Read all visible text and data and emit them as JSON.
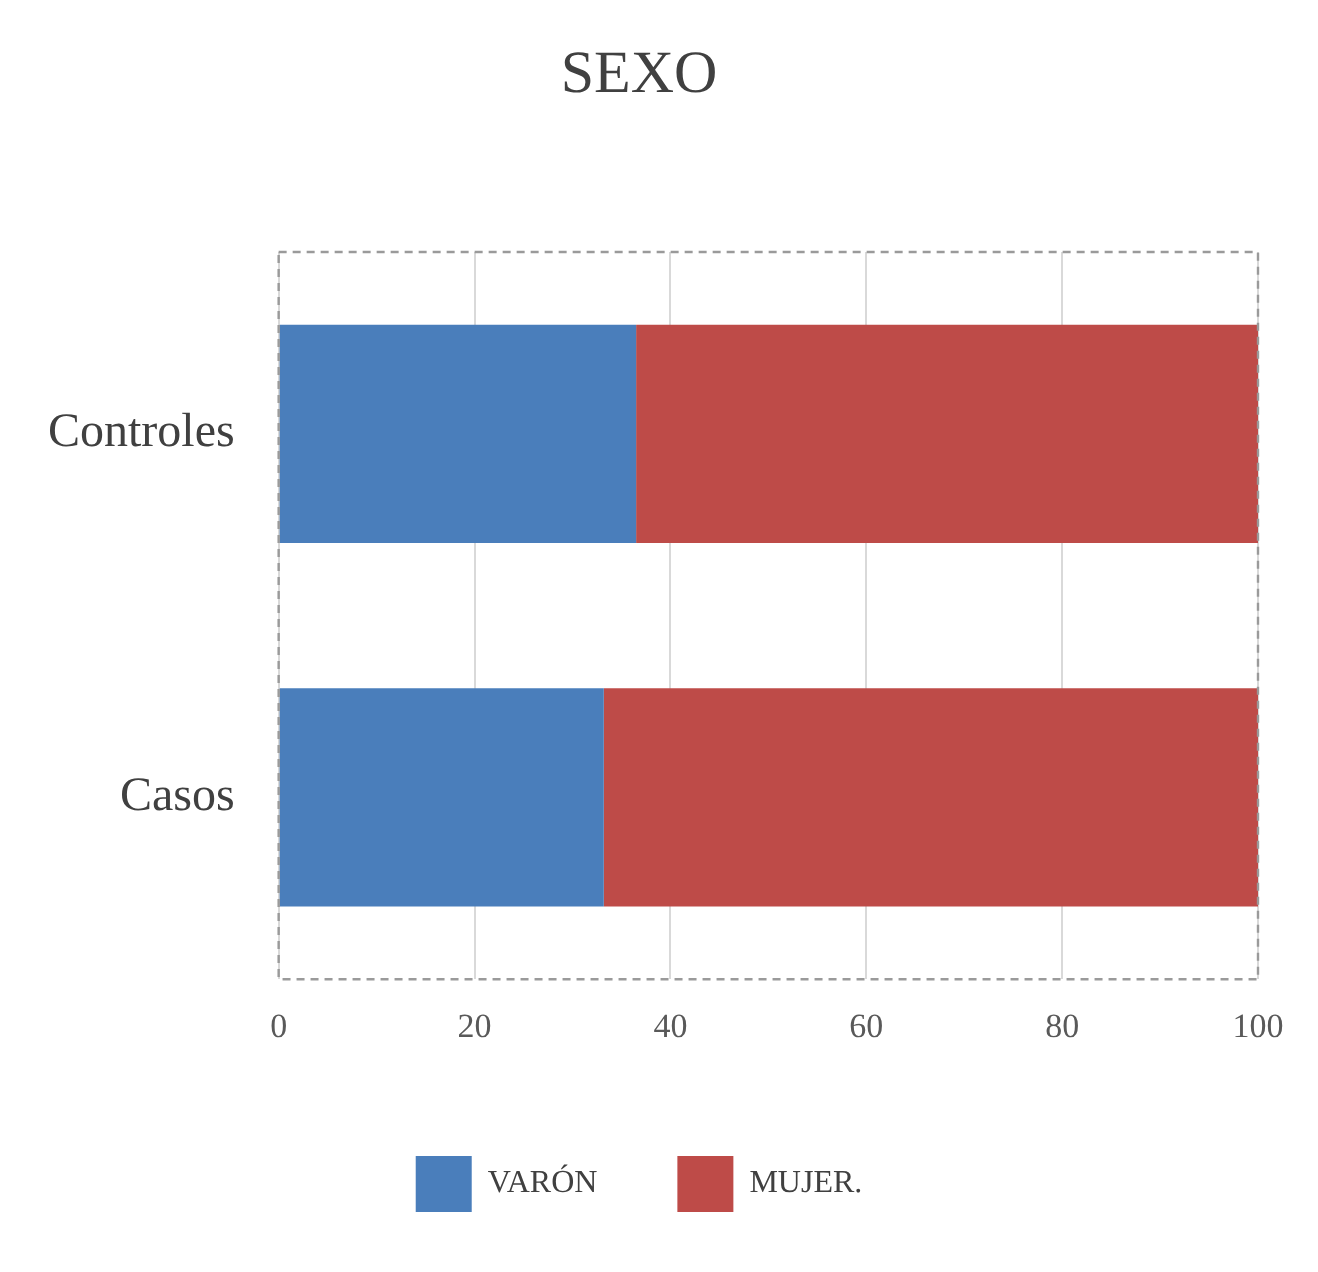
{
  "chart_data": {
    "type": "bar",
    "orientation": "horizontal",
    "stacked": true,
    "title": "SEXO",
    "categories": [
      "Controles",
      "Casos"
    ],
    "series": [
      {
        "name": "VARÓN",
        "color": "#4a7ebb",
        "values": [
          36.5,
          33.2
        ]
      },
      {
        "name": "MUJER.",
        "color": "#be4b48",
        "values": [
          63.5,
          66.8
        ]
      }
    ],
    "xlim": [
      0,
      100
    ],
    "xticks": [
      0,
      20,
      40,
      60,
      80,
      100
    ],
    "grid": "x",
    "legend": "bottom"
  }
}
